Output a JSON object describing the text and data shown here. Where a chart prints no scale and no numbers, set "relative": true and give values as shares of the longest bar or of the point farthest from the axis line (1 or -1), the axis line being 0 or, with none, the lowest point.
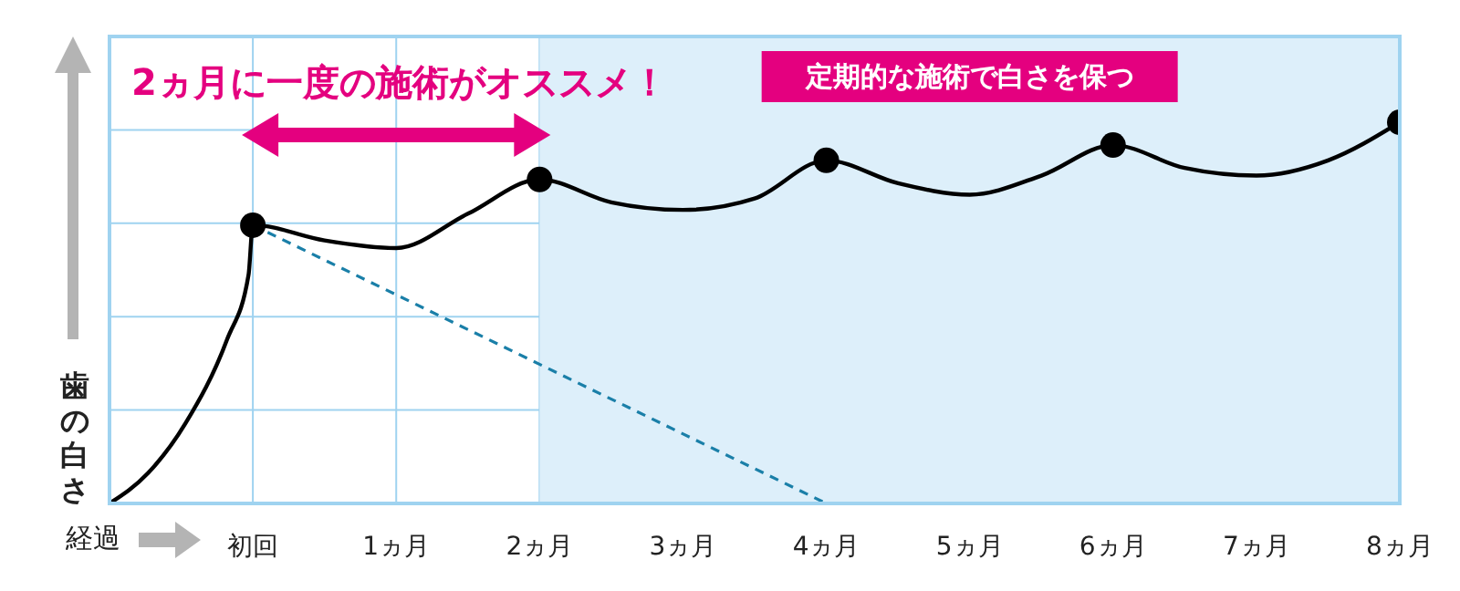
{
  "chart_data": {
    "type": "line",
    "relative": true,
    "xlabel": "経過",
    "ylabel": "歯の白さ",
    "xlim": [
      -1,
      8
    ],
    "xticks": [
      {
        "value": 0,
        "label": "初回"
      },
      {
        "value": 1,
        "label": "1ヵ月"
      },
      {
        "value": 2,
        "label": "2ヵ月"
      },
      {
        "value": 3,
        "label": "3ヵ月"
      },
      {
        "value": 4,
        "label": "4ヵ月"
      },
      {
        "value": 5,
        "label": "5ヵ月"
      },
      {
        "value": 6,
        "label": "6ヵ月"
      },
      {
        "value": 7,
        "label": "7ヵ月"
      },
      {
        "value": 8,
        "label": "8ヵ月"
      }
    ],
    "grid": true,
    "series": [
      {
        "color": "#000000",
        "line_style": "solid",
        "marker": "none",
        "x": [
          -1,
          -0.73,
          -0.47,
          -0.18,
          -0.03,
          0,
          0.5,
          1,
          1.5,
          2,
          2.5,
          3,
          3.5,
          4,
          4.5,
          5,
          5.5,
          6,
          6.5,
          7,
          7.5,
          8
        ],
        "values": [
          0,
          0.08,
          0.21,
          0.43,
          0.6,
          0.73,
          0.69,
          0.67,
          0.76,
          0.85,
          0.79,
          0.77,
          0.8,
          0.9,
          0.84,
          0.81,
          0.86,
          0.94,
          0.88,
          0.86,
          0.9,
          1
        ]
      },
      {
        "color": "#1a7fa8",
        "line_style": "dashed",
        "marker": "none",
        "x": [
          0,
          4
        ],
        "values": [
          0.73,
          0
        ]
      },
      {
        "type": "scatter",
        "color": "#000000",
        "marker": "circle",
        "x": [
          0,
          2,
          4,
          6,
          8
        ],
        "values": [
          0.73,
          0.85,
          0.9,
          0.94,
          1
        ]
      }
    ],
    "bands": [
      {
        "axis": "x",
        "from": 2,
        "to": 8,
        "label": "定期的な施術で白さを保つ",
        "color": "#ddeffa"
      }
    ],
    "annotations": [
      "2ヵ月に一度の施術がオススメ！"
    ]
  }
}
